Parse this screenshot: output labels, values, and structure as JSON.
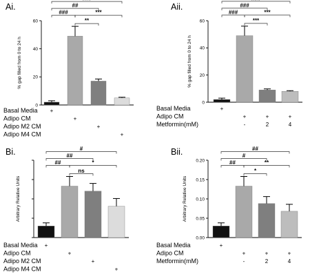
{
  "chart_data": [
    {
      "id": "Ai",
      "panel_label": "Ai.",
      "type": "bar",
      "ylabel": "% gap filled from 0 to 24 h",
      "ylim": [
        0,
        60
      ],
      "yticks": [
        0,
        20,
        40,
        60
      ],
      "categories": [
        "Basal Media",
        "Adipo CM",
        "Adipo M2 CM",
        "Adipo M4 CM"
      ],
      "values": [
        2,
        49,
        17,
        5
      ],
      "errors": [
        1,
        7,
        1.5,
        0.5
      ],
      "colors": [
        "#111111",
        "#a9a9a9",
        "#7f7f7f",
        "#dcdcdc"
      ],
      "condition_rows": [
        {
          "label": "Basal Media",
          "marks": [
            "+",
            "",
            "",
            ""
          ]
        },
        {
          "label": "Adipo CM",
          "marks": [
            "",
            "+",
            "",
            ""
          ]
        },
        {
          "label": "Adipo M2 CM",
          "marks": [
            "",
            "",
            "+",
            ""
          ]
        },
        {
          "label": "Adipo M4 CM",
          "marks": [
            "",
            "",
            "",
            "+"
          ]
        }
      ],
      "significance": [
        {
          "from": 0,
          "to": 1,
          "label": "###",
          "level": 1
        },
        {
          "from": 1,
          "to": 2,
          "label": "**",
          "level": 0
        },
        {
          "from": 1,
          "to": 3,
          "label": "***",
          "level": 1
        },
        {
          "from": 0,
          "to": 2,
          "label": "##",
          "level": 2
        },
        {
          "from": 0,
          "to": 3,
          "label": "###",
          "level": 3
        }
      ]
    },
    {
      "id": "Aii",
      "panel_label": "Aii.",
      "type": "bar",
      "ylabel": "% gap filled from 0 to 24 h",
      "ylim": [
        0,
        60
      ],
      "yticks": [
        0,
        20,
        40,
        60
      ],
      "categories": [
        "Basal Media",
        "Adipo CM",
        "Adipo CM + Metformin 2 mM",
        "Adipo CM + Metformin 4 mM"
      ],
      "values": [
        2,
        49,
        9,
        8
      ],
      "errors": [
        1,
        7,
        0.8,
        0.5
      ],
      "colors": [
        "#111111",
        "#a9a9a9",
        "#7f7f7f",
        "#bdbdbd"
      ],
      "condition_rows": [
        {
          "label": "Basal Media",
          "marks": [
            "+",
            "",
            "",
            ""
          ]
        },
        {
          "label": "Adipo CM",
          "marks": [
            "",
            "+",
            "+",
            "+"
          ]
        },
        {
          "label": "Metformin(mM)",
          "marks": [
            "",
            "-",
            "2",
            "4"
          ]
        }
      ],
      "significance": [
        {
          "from": 0,
          "to": 1,
          "label": "###",
          "level": 1
        },
        {
          "from": 1,
          "to": 2,
          "label": "***",
          "level": 0
        },
        {
          "from": 1,
          "to": 3,
          "label": "***",
          "level": 1
        },
        {
          "from": 0,
          "to": 2,
          "label": "###",
          "level": 2
        },
        {
          "from": 0,
          "to": 3,
          "label": "###",
          "level": 3
        }
      ]
    },
    {
      "id": "Bi",
      "panel_label": "Bi.",
      "type": "bar",
      "ylabel": "Arbitrary Relative Units",
      "ylim": [
        0,
        0.2
      ],
      "yticks": [
        0.0,
        0.05,
        0.1,
        0.15,
        0.2
      ],
      "tick_format": 2,
      "show_tick_labels": false,
      "categories": [
        "Basal Media",
        "Adipo CM",
        "Adipo M2 CM",
        "Adipo M4 CM"
      ],
      "values": [
        0.03,
        0.133,
        0.12,
        0.081
      ],
      "errors": [
        0.008,
        0.025,
        0.02,
        0.02
      ],
      "colors": [
        "#111111",
        "#a9a9a9",
        "#7f7f7f",
        "#dcdcdc"
      ],
      "condition_rows": [
        {
          "label": "Basal Media",
          "marks": [
            "+",
            "",
            "",
            ""
          ]
        },
        {
          "label": "Adipo CM",
          "marks": [
            "",
            "+",
            "",
            ""
          ]
        },
        {
          "label": "Adipo M2 CM",
          "marks": [
            "",
            "",
            "+",
            ""
          ]
        },
        {
          "label": "Adipo M4 CM",
          "marks": [
            "",
            "",
            "",
            "+"
          ]
        }
      ],
      "significance": [
        {
          "from": 0,
          "to": 1,
          "label": "##",
          "level": 1
        },
        {
          "from": 1,
          "to": 2,
          "label": "ns",
          "level": 0
        },
        {
          "from": 1,
          "to": 3,
          "label": "*",
          "level": 1
        },
        {
          "from": 0,
          "to": 2,
          "label": "##",
          "level": 2
        },
        {
          "from": 0,
          "to": 3,
          "label": "#",
          "level": 3
        }
      ]
    },
    {
      "id": "Bii",
      "panel_label": "Bii.",
      "type": "bar",
      "ylabel": "Arbitrary Relative Units",
      "ylim": [
        0,
        0.2
      ],
      "yticks": [
        0.0,
        0.05,
        0.1,
        0.15,
        0.2
      ],
      "tick_format": 2,
      "show_tick_labels": true,
      "categories": [
        "Basal Media",
        "Adipo CM",
        "Adipo CM + Metformin 2 mM",
        "Adipo CM + Metformin 4 mM"
      ],
      "values": [
        0.03,
        0.133,
        0.088,
        0.068
      ],
      "errors": [
        0.008,
        0.025,
        0.018,
        0.018
      ],
      "colors": [
        "#111111",
        "#a9a9a9",
        "#7f7f7f",
        "#bdbdbd"
      ],
      "condition_rows": [
        {
          "label": "Basal Media",
          "marks": [
            "+",
            "",
            "",
            ""
          ]
        },
        {
          "label": "Adipo CM",
          "marks": [
            "",
            "+",
            "+",
            "+"
          ]
        },
        {
          "label": "Metformin(mM)",
          "marks": [
            "",
            "-",
            "2",
            "4"
          ]
        }
      ],
      "significance": [
        {
          "from": 0,
          "to": 1,
          "label": "##",
          "level": 1
        },
        {
          "from": 1,
          "to": 2,
          "label": "*",
          "level": 0
        },
        {
          "from": 1,
          "to": 3,
          "label": "**",
          "level": 1
        },
        {
          "from": 0,
          "to": 2,
          "label": "#",
          "level": 2
        },
        {
          "from": 0,
          "to": 3,
          "label": "##",
          "level": 3
        }
      ]
    }
  ]
}
